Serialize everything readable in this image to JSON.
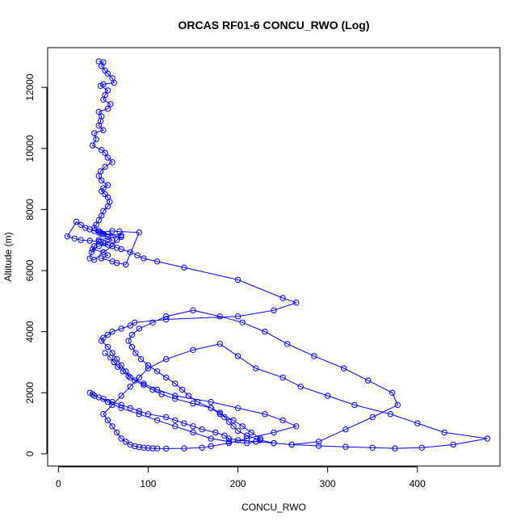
{
  "chart_data": {
    "type": "line",
    "title": "ORCAS RF01-6 CONCU_RWO (Log)",
    "xlabel": "CONCU_RWO",
    "ylabel": "Altitude (m)",
    "xlim": [
      -12,
      492
    ],
    "ylim": [
      -400,
      13300
    ],
    "x_ticks": [
      0,
      100,
      200,
      300,
      400
    ],
    "y_ticks": [
      0,
      2000,
      4000,
      6000,
      8000,
      10000,
      12000
    ],
    "x_tick_labels": [
      "0",
      "100",
      "200",
      "300",
      "400"
    ],
    "y_tick_labels": [
      "0",
      "2000",
      "4000",
      "6000",
      "8000",
      "10000",
      "12000"
    ],
    "grid": false,
    "legend": "none",
    "marker": "open-circle",
    "color": "#0000ff",
    "series": [
      {
        "x": [
          45,
          50,
          48,
          52,
          55,
          60,
          62,
          50,
          47,
          55,
          52,
          50,
          58,
          55,
          45,
          48,
          47,
          45,
          50,
          40,
          42,
          38,
          48,
          52,
          55,
          60,
          52,
          47,
          45,
          48,
          55,
          50,
          48,
          52,
          55,
          57,
          55,
          50,
          48,
          45,
          42,
          40,
          45,
          48,
          55,
          60,
          52,
          45,
          38,
          50,
          55,
          48,
          60,
          65,
          75,
          90,
          68,
          60,
          47,
          55,
          70,
          45,
          40,
          37,
          35,
          40,
          50,
          60,
          65,
          70,
          50,
          45,
          40,
          35,
          30,
          25,
          20,
          10,
          18,
          25,
          35,
          45,
          50,
          55,
          60,
          65,
          70,
          80,
          88,
          95,
          110,
          140,
          200,
          250,
          265,
          240,
          200,
          120,
          85,
          80,
          70,
          60,
          55,
          50,
          48,
          55,
          60,
          65,
          70,
          75,
          80,
          95,
          110,
          130,
          170,
          200,
          230,
          250,
          265,
          240,
          210,
          190,
          170,
          160,
          140,
          120,
          110,
          105,
          100,
          95,
          90,
          85,
          80,
          75,
          70,
          65,
          60,
          55,
          50,
          60,
          70,
          80,
          90,
          100,
          120,
          150,
          180,
          200,
          220,
          250,
          270,
          300,
          330,
          370,
          400,
          430,
          478,
          440,
          405,
          375,
          350,
          320,
          290,
          260,
          240,
          220,
          200,
          190,
          185,
          175,
          160,
          150,
          140,
          130,
          120,
          100,
          90,
          80,
          70,
          60,
          50,
          40,
          35,
          38,
          45,
          55,
          70,
          90,
          110,
          130,
          150,
          170,
          190,
          210,
          220,
          225,
          215,
          205,
          195,
          180,
          170,
          155,
          145,
          138,
          130,
          120,
          110,
          100,
          92,
          86,
          82,
          78,
          82,
          90,
          105,
          120,
          150,
          180,
          205,
          230,
          255,
          285,
          318,
          345,
          372,
          378,
          350,
          320,
          290,
          260,
          240,
          225,
          210,
          200,
          195,
          190,
          185,
          180,
          170,
          150,
          130,
          115,
          105,
          95,
          85,
          78,
          72,
          66,
          62,
          58,
          52
        ],
        "y": [
          12850,
          12820,
          12700,
          12550,
          12450,
          12300,
          12150,
          12100,
          12050,
          11900,
          11750,
          11600,
          11450,
          11300,
          11200,
          11050,
          10900,
          10750,
          10600,
          10500,
          10300,
          10100,
          9950,
          9850,
          9700,
          9550,
          9400,
          9250,
          9100,
          8950,
          8800,
          8700,
          8600,
          8500,
          8400,
          8250,
          8100,
          7950,
          7800,
          7650,
          7500,
          7400,
          7300,
          7200,
          7100,
          7000,
          6900,
          6800,
          6700,
          6600,
          6500,
          6400,
          6300,
          6250,
          6200,
          7250,
          7280,
          7300,
          7250,
          7200,
          7150,
          7000,
          6800,
          6600,
          6400,
          6350,
          6600,
          6800,
          7000,
          7100,
          7200,
          7250,
          7300,
          7350,
          7400,
          7500,
          7600,
          7120,
          7050,
          7000,
          6980,
          6950,
          6900,
          6850,
          6800,
          6750,
          6700,
          6600,
          6500,
          6400,
          6300,
          6100,
          5700,
          5100,
          4950,
          4700,
          4500,
          4400,
          4300,
          4200,
          4100,
          4000,
          3900,
          3800,
          3700,
          3500,
          3300,
          3100,
          2900,
          2700,
          2500,
          2300,
          2100,
          1900,
          1700,
          1500,
          1300,
          1100,
          900,
          700,
          500,
          350,
          250,
          200,
          180,
          170,
          175,
          180,
          190,
          200,
          220,
          250,
          300,
          400,
          500,
          700,
          900,
          1100,
          1300,
          1600,
          1900,
          2200,
          2500,
          2800,
          3100,
          3400,
          3600,
          3200,
          2800,
          2500,
          2200,
          1900,
          1600,
          1300,
          1000,
          700,
          500,
          300,
          200,
          180,
          200,
          230,
          260,
          300,
          350,
          400,
          450,
          500,
          600,
          700,
          800,
          900,
          1000,
          1100,
          1200,
          1300,
          1400,
          1500,
          1600,
          1700,
          1800,
          1900,
          2000,
          1950,
          1850,
          1700,
          1500,
          1300,
          1100,
          900,
          700,
          500,
          400,
          350,
          400,
          500,
          700,
          900,
          1100,
          1300,
          1500,
          1700,
          1900,
          2100,
          2300,
          2500,
          2700,
          2900,
          3100,
          3300,
          3500,
          3700,
          3900,
          4100,
          4300,
          4500,
          4700,
          4500,
          4300,
          4000,
          3600,
          3200,
          2800,
          2400,
          2000,
          1600,
          1200,
          800,
          400,
          300,
          350,
          450,
          600,
          750,
          900,
          1050,
          1200,
          1350,
          1500,
          1650,
          1800,
          1950,
          2100,
          2250,
          2400,
          2550,
          2700,
          2850,
          3000,
          3150,
          3300
        ]
      }
    ]
  }
}
